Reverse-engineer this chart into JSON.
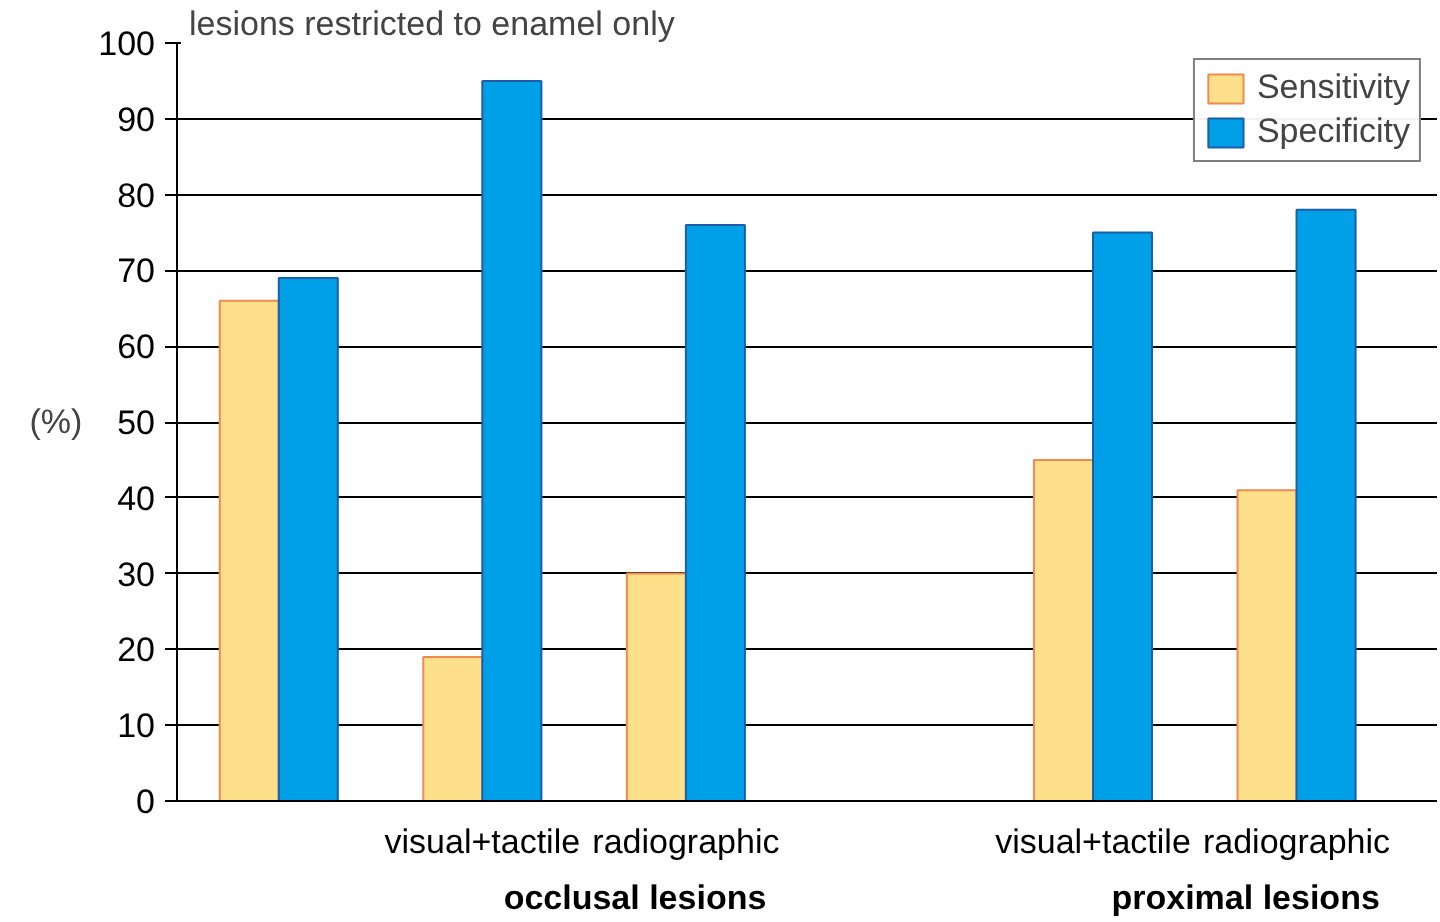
{
  "chart_data": {
    "type": "bar",
    "title": "lesions restricted to enamel only",
    "ylabel": "(%)",
    "categories": [
      null,
      "visual+tactile",
      "radiographic",
      null,
      "visual+tactile",
      "radiographic"
    ],
    "series": [
      {
        "name": "Sensitivity",
        "color": "#ffe08a",
        "values": [
          66,
          19,
          30,
          null,
          45,
          41
        ]
      },
      {
        "name": "Specificity",
        "color": "#00a0e9",
        "values": [
          69,
          95,
          76,
          null,
          75,
          78
        ]
      }
    ],
    "ylim": [
      0,
      100
    ],
    "yticks": [
      0,
      10,
      20,
      30,
      40,
      50,
      60,
      70,
      80,
      90,
      100
    ],
    "grid": "y",
    "legend": "top right",
    "annotations": [
      "occlusal lesions",
      "proximal lesions"
    ]
  }
}
